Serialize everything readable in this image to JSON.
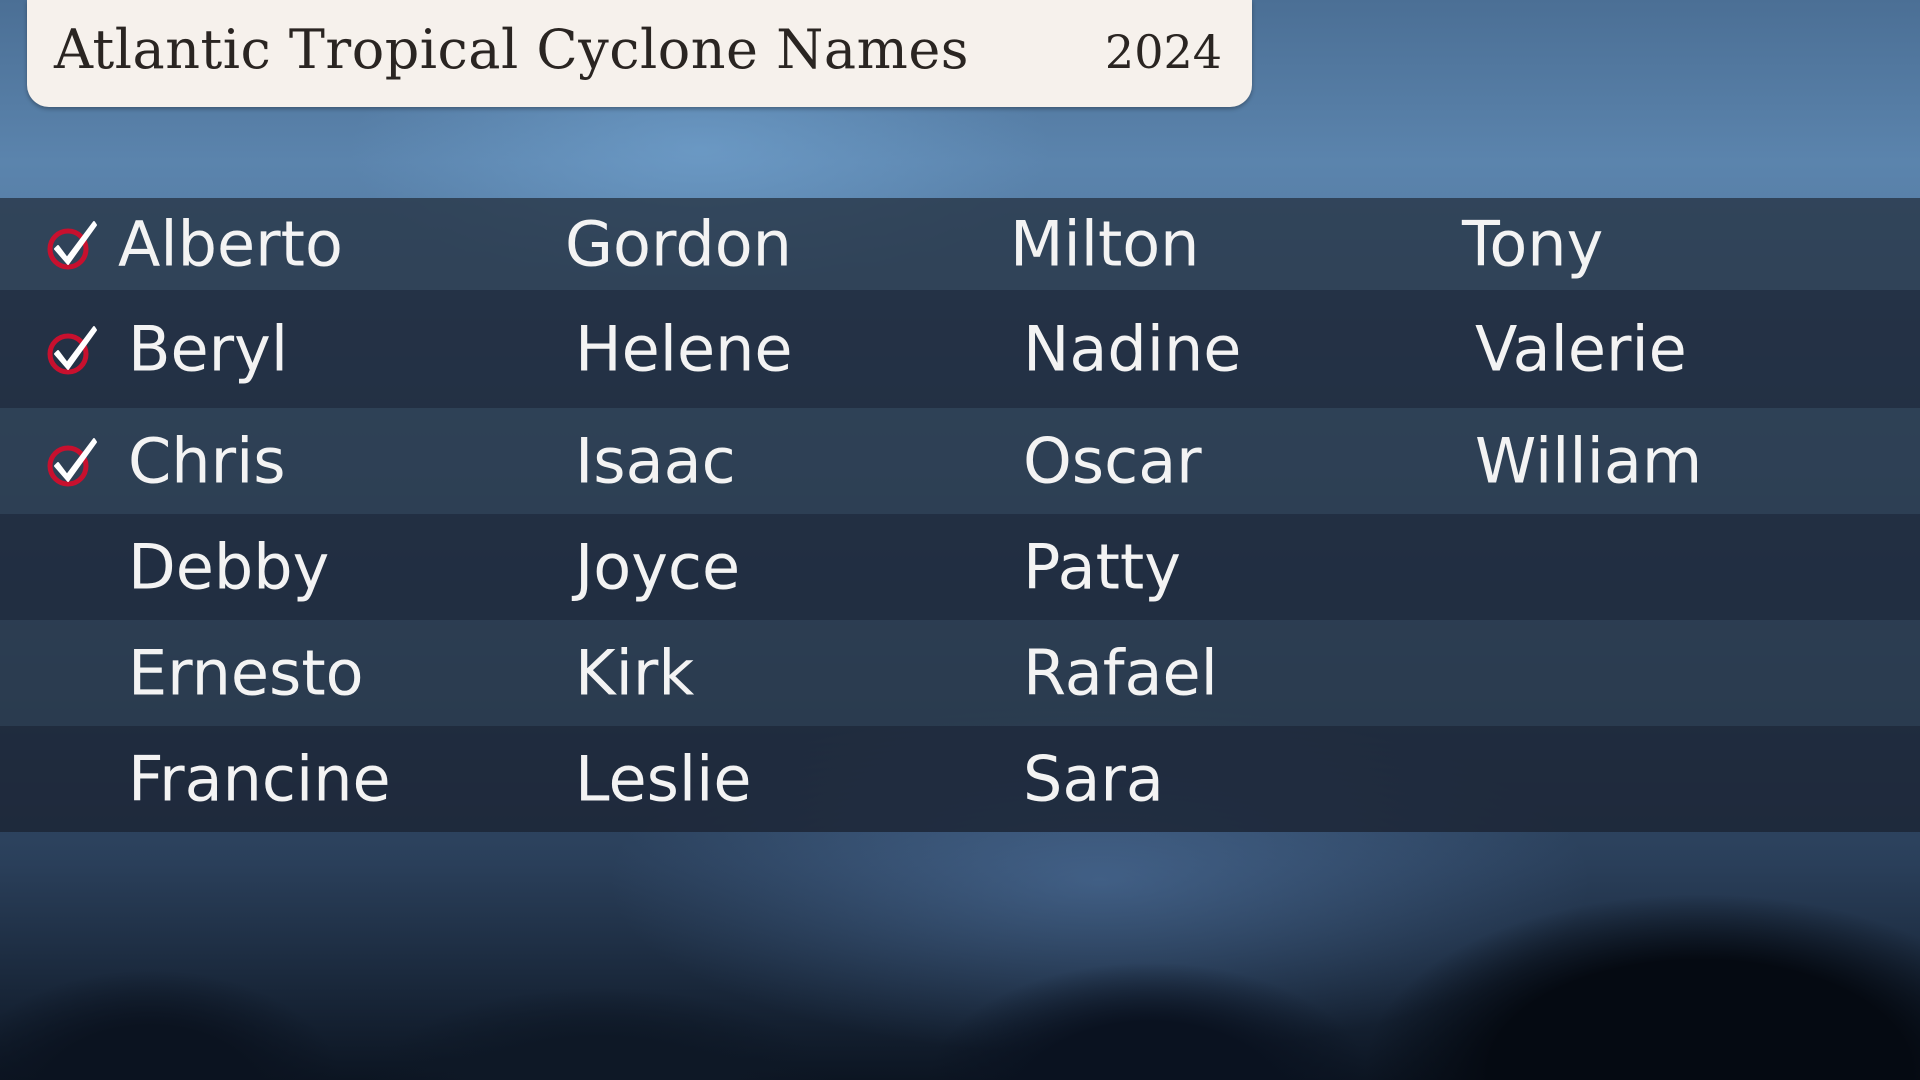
{
  "header": {
    "title": "Atlantic Tropical Cyclone Names",
    "year": "2024"
  },
  "colors": {
    "check_ring": "#c8102e",
    "title_bg": "#f6f1ec"
  },
  "rows": [
    {
      "checked": true,
      "names": [
        "Alberto",
        "Gordon",
        "Milton",
        "Tony"
      ]
    },
    {
      "checked": true,
      "names": [
        "Beryl",
        "Helene",
        "Nadine",
        "Valerie"
      ]
    },
    {
      "checked": true,
      "names": [
        "Chris",
        "Isaac",
        "Oscar",
        "William"
      ]
    },
    {
      "checked": false,
      "names": [
        "Debby",
        "Joyce",
        "Patty",
        ""
      ]
    },
    {
      "checked": false,
      "names": [
        "Ernesto",
        "Kirk",
        "Rafael",
        ""
      ]
    },
    {
      "checked": false,
      "names": [
        "Francine",
        "Leslie",
        "Sara",
        ""
      ]
    }
  ]
}
